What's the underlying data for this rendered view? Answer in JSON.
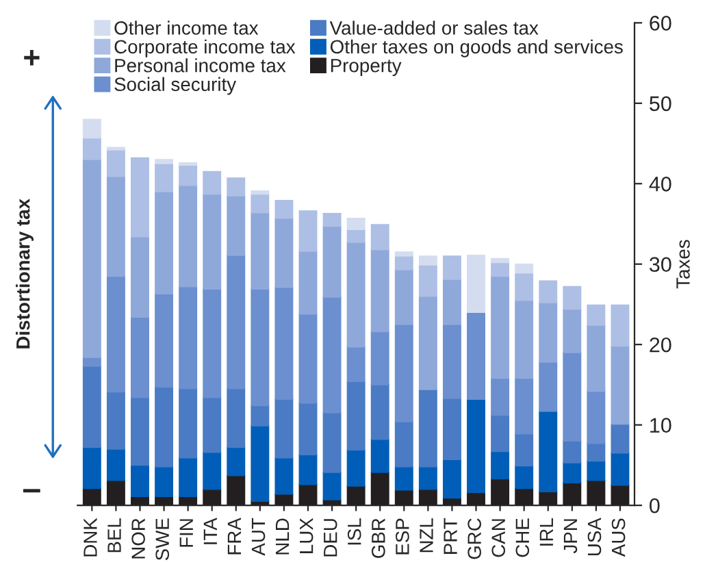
{
  "chart_data": {
    "type": "bar",
    "stacked": true,
    "categories": [
      "DNK",
      "BEL",
      "NOR",
      "SWE",
      "FIN",
      "ITA",
      "FRA",
      "AUT",
      "NLD",
      "LUX",
      "DEU",
      "ISL",
      "GBR",
      "ESP",
      "NZL",
      "PRT",
      "GRC",
      "CAN",
      "CHE",
      "IRL",
      "JPN",
      "USA",
      "AUS"
    ],
    "series": [
      {
        "name": "Property",
        "color": "#231f20",
        "values": [
          2.1,
          3.1,
          1.1,
          1.1,
          1.1,
          2.0,
          3.7,
          0.5,
          1.4,
          2.6,
          0.7,
          2.4,
          4.1,
          1.9,
          2.0,
          0.9,
          1.6,
          3.3,
          2.1,
          1.7,
          2.8,
          3.1,
          2.5
        ]
      },
      {
        "name": "Other taxes on goods and services",
        "color": "#005eb8",
        "values": [
          5.1,
          3.9,
          3.9,
          3.7,
          4.8,
          4.6,
          3.5,
          9.4,
          4.5,
          3.7,
          3.4,
          4.5,
          4.1,
          2.9,
          2.8,
          4.8,
          11.6,
          3.4,
          2.8,
          10.0,
          2.5,
          2.4,
          4.0
        ]
      },
      {
        "name": "Value-added or sales tax",
        "color": "#4a7bc4",
        "values": [
          10.1,
          7.1,
          8.4,
          9.9,
          8.6,
          6.8,
          7.3,
          2.5,
          7.3,
          6.4,
          7.4,
          8.5,
          6.8,
          5.6,
          9.6,
          7.6,
          0,
          4.5,
          4.0,
          0,
          2.7,
          2.2,
          3.6
        ]
      },
      {
        "name": "Social security",
        "color": "#6b8fcf",
        "values": [
          1.1,
          14.4,
          10.0,
          11.6,
          12.7,
          13.5,
          16.6,
          14.5,
          13.9,
          11.1,
          14.4,
          4.3,
          6.6,
          12.1,
          0,
          9.2,
          10.8,
          4.6,
          6.9,
          6.1,
          11.0,
          6.5,
          0
        ]
      },
      {
        "name": "Personal income tax",
        "color": "#8fa8da",
        "values": [
          24.6,
          12.4,
          10.0,
          12.7,
          12.6,
          11.8,
          7.4,
          9.5,
          8.6,
          7.8,
          8.8,
          13.0,
          10.2,
          6.8,
          11.6,
          5.6,
          0,
          12.7,
          9.7,
          7.4,
          5.4,
          8.2,
          9.7
        ]
      },
      {
        "name": "Corporate income tax",
        "color": "#adbfe4",
        "values": [
          2.7,
          3.3,
          9.8,
          3.5,
          2.5,
          2.8,
          2.2,
          2.3,
          2.2,
          5.0,
          1.6,
          1.6,
          3.1,
          1.7,
          3.9,
          2.9,
          0,
          1.7,
          3.4,
          2.7,
          2.8,
          2.5,
          5.1
        ]
      },
      {
        "name": "Other income tax",
        "color": "#d4ddf0",
        "values": [
          2.3,
          0.3,
          0,
          0.5,
          0.3,
          0,
          0,
          0.4,
          0,
          0,
          0,
          1.4,
          0,
          0.5,
          1.1,
          0,
          7.1,
          0.5,
          1.1,
          0,
          0,
          0,
          0
        ]
      }
    ],
    "ylim": [
      0,
      60
    ],
    "yticks": [
      0,
      10,
      20,
      30,
      40,
      50,
      60
    ],
    "ylabel": "Taxes",
    "legend": "top left",
    "grid": false,
    "annotations": [
      "+",
      "Distortionary tax",
      "–"
    ]
  }
}
